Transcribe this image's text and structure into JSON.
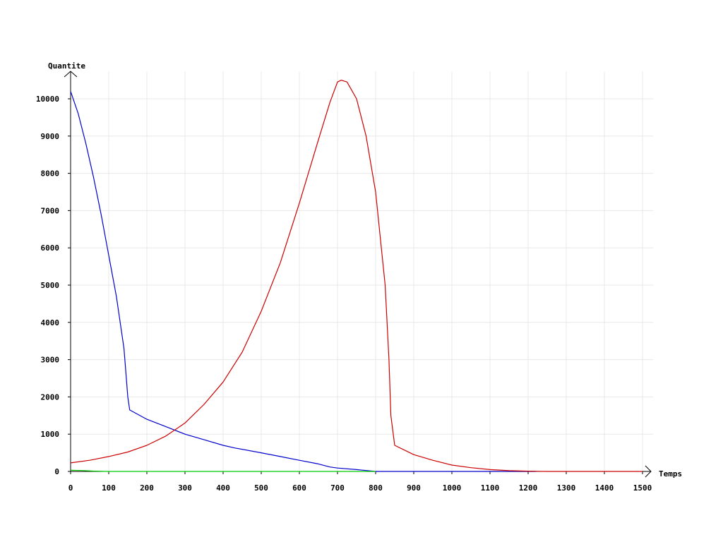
{
  "chart_data": {
    "type": "line",
    "title": "",
    "xlabel": "Temps",
    "ylabel": "Quantite",
    "xlim": [
      0,
      1500
    ],
    "ylim": [
      0,
      10500
    ],
    "grid": true,
    "x_ticks": [
      0,
      100,
      200,
      300,
      400,
      500,
      600,
      700,
      800,
      900,
      1000,
      1100,
      1200,
      1300,
      1400,
      1500
    ],
    "y_ticks": [
      0,
      1000,
      2000,
      3000,
      4000,
      5000,
      6000,
      7000,
      8000,
      9000,
      10000
    ],
    "series": [
      {
        "color": "#0000cc",
        "points": [
          [
            0,
            10200
          ],
          [
            20,
            9600
          ],
          [
            40,
            8800
          ],
          [
            60,
            7900
          ],
          [
            80,
            6900
          ],
          [
            100,
            5800
          ],
          [
            120,
            4700
          ],
          [
            140,
            3300
          ],
          [
            150,
            2000
          ],
          [
            155,
            1650
          ],
          [
            200,
            1400
          ],
          [
            250,
            1200
          ],
          [
            300,
            1000
          ],
          [
            350,
            850
          ],
          [
            400,
            700
          ],
          [
            430,
            630
          ],
          [
            500,
            500
          ],
          [
            550,
            400
          ],
          [
            600,
            300
          ],
          [
            650,
            200
          ],
          [
            680,
            120
          ],
          [
            700,
            90
          ],
          [
            750,
            50
          ],
          [
            800,
            0
          ],
          [
            900,
            0
          ],
          [
            1000,
            0
          ],
          [
            1100,
            0
          ],
          [
            1200,
            0
          ],
          [
            1220,
            0
          ]
        ]
      },
      {
        "color": "#cc0000",
        "points": [
          [
            0,
            230
          ],
          [
            50,
            300
          ],
          [
            100,
            400
          ],
          [
            150,
            520
          ],
          [
            200,
            700
          ],
          [
            250,
            950
          ],
          [
            300,
            1300
          ],
          [
            350,
            1800
          ],
          [
            400,
            2400
          ],
          [
            450,
            3200
          ],
          [
            500,
            4300
          ],
          [
            550,
            5600
          ],
          [
            600,
            7200
          ],
          [
            650,
            8900
          ],
          [
            680,
            9900
          ],
          [
            700,
            10450
          ],
          [
            710,
            10500
          ],
          [
            725,
            10450
          ],
          [
            750,
            10000
          ],
          [
            775,
            9000
          ],
          [
            800,
            7500
          ],
          [
            825,
            5000
          ],
          [
            835,
            3000
          ],
          [
            840,
            1500
          ],
          [
            850,
            700
          ],
          [
            900,
            450
          ],
          [
            950,
            300
          ],
          [
            1000,
            170
          ],
          [
            1050,
            100
          ],
          [
            1100,
            50
          ],
          [
            1150,
            20
          ],
          [
            1200,
            8
          ],
          [
            1250,
            0
          ],
          [
            1300,
            0
          ],
          [
            1400,
            0
          ],
          [
            1500,
            0
          ]
        ]
      },
      {
        "color": "#00cc00",
        "points": [
          [
            0,
            30
          ],
          [
            30,
            25
          ],
          [
            60,
            10
          ],
          [
            100,
            0
          ],
          [
            200,
            0
          ],
          [
            400,
            0
          ],
          [
            600,
            0
          ],
          [
            800,
            0
          ]
        ]
      }
    ]
  }
}
